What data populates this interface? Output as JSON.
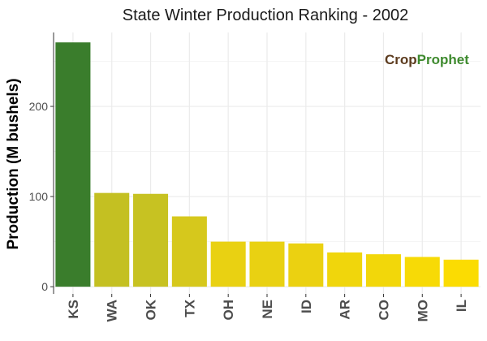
{
  "chart_data": {
    "type": "bar",
    "title": "State Winter  Production Ranking - 2002",
    "xlabel": "",
    "ylabel": "Production (M bushels)",
    "categories": [
      "KS",
      "WA",
      "OK",
      "TX",
      "OH",
      "NE",
      "ID",
      "AR",
      "CO",
      "MO",
      "IL"
    ],
    "values": [
      271,
      104,
      103,
      78,
      50,
      50,
      48,
      38,
      36,
      33,
      30
    ],
    "colors": [
      "#3a7d2c",
      "#c4c022",
      "#c7c222",
      "#d6c81c",
      "#e9d112",
      "#e9d112",
      "#ebd111",
      "#f0d60c",
      "#f2d70a",
      "#f7da06",
      "#fbdc02"
    ],
    "yticks": [
      0,
      100,
      200
    ],
    "ylim": [
      -8,
      282
    ],
    "grid": true
  },
  "logo": {
    "part1": "Crop",
    "part2": "Prophet"
  },
  "colors": {
    "grid": "#ebebeb",
    "axis": "#333333"
  }
}
